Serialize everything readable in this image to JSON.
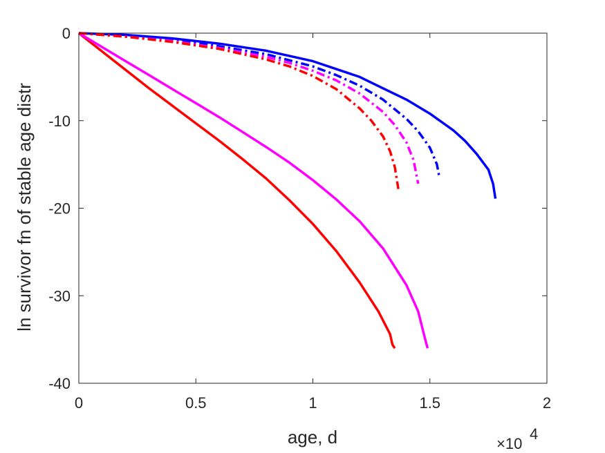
{
  "chart_data": {
    "type": "line",
    "xlabel": "age, d",
    "ylabel": "ln survivor fn of stable age distr",
    "x_multiplier_label": "×10",
    "x_multiplier_exp": "4",
    "xlim": [
      0,
      20000
    ],
    "ylim": [
      -40,
      0
    ],
    "xticks": [
      0,
      5000,
      10000,
      15000,
      20000
    ],
    "xtick_labels": [
      "0",
      "0.5",
      "1",
      "1.5",
      "2"
    ],
    "yticks": [
      0,
      -10,
      -20,
      -30,
      -40
    ],
    "ytick_labels": [
      "0",
      "-10",
      "-20",
      "-30",
      "-40"
    ],
    "grid": false,
    "series": [
      {
        "color": "#ff0000",
        "style": "solid",
        "x": [
          0,
          1000,
          2000,
          3000,
          4000,
          5000,
          6000,
          7000,
          8000,
          9000,
          10000,
          11000,
          12000,
          12800,
          13300,
          13400,
          13500
        ],
        "y": [
          0,
          -2.1,
          -4.2,
          -6.3,
          -8.3,
          -10.3,
          -12.3,
          -14.4,
          -16.6,
          -19.1,
          -21.8,
          -24.9,
          -28.5,
          -31.8,
          -34.4,
          -35.6,
          -36.0
        ]
      },
      {
        "color": "#ff00ff",
        "style": "solid",
        "x": [
          0,
          1000,
          2000,
          3000,
          4000,
          5000,
          6000,
          7000,
          8000,
          9000,
          10000,
          11000,
          12000,
          13000,
          14000,
          14500,
          14800,
          14900
        ],
        "y": [
          0,
          -1.6,
          -3.2,
          -4.8,
          -6.4,
          -8.0,
          -9.6,
          -11.3,
          -13.0,
          -14.8,
          -16.8,
          -19.0,
          -21.5,
          -24.6,
          -28.8,
          -31.8,
          -35.0,
          -36.0
        ]
      },
      {
        "color": "#0000ff",
        "style": "solid",
        "x": [
          0,
          2000,
          4000,
          6000,
          8000,
          10000,
          12000,
          13000,
          14000,
          15000,
          16000,
          16500,
          17000,
          17500,
          17700,
          17800
        ],
        "y": [
          0,
          -0.2,
          -0.6,
          -1.2,
          -2.0,
          -3.2,
          -5.0,
          -6.3,
          -7.6,
          -9.2,
          -11.1,
          -12.3,
          -13.8,
          -15.6,
          -17.2,
          -18.9
        ]
      },
      {
        "color": "#0000ff",
        "style": "dashdot",
        "x": [
          0,
          2000,
          4000,
          6000,
          8000,
          10000,
          11000,
          12000,
          13000,
          14000,
          14500,
          15000,
          15300,
          15400
        ],
        "y": [
          0,
          -0.3,
          -0.8,
          -1.5,
          -2.4,
          -3.8,
          -4.8,
          -6.0,
          -7.6,
          -9.8,
          -11.2,
          -13.1,
          -15.0,
          -16.4
        ]
      },
      {
        "color": "#ff00ff",
        "style": "dashdot",
        "x": [
          0,
          2000,
          4000,
          6000,
          8000,
          9000,
          10000,
          11000,
          12000,
          13000,
          13500,
          14000,
          14300,
          14500
        ],
        "y": [
          0,
          -0.4,
          -0.9,
          -1.7,
          -2.7,
          -3.4,
          -4.3,
          -5.4,
          -6.9,
          -9.0,
          -10.5,
          -12.5,
          -14.5,
          -17.2
        ]
      },
      {
        "color": "#ff0000",
        "style": "dashdot",
        "x": [
          0,
          2000,
          4000,
          6000,
          8000,
          9000,
          10000,
          11000,
          12000,
          12500,
          13000,
          13300,
          13500,
          13650
        ],
        "y": [
          0,
          -0.4,
          -1.0,
          -1.8,
          -3.0,
          -3.8,
          -4.9,
          -6.4,
          -8.6,
          -10.0,
          -11.8,
          -13.5,
          -15.3,
          -17.8
        ]
      }
    ]
  }
}
